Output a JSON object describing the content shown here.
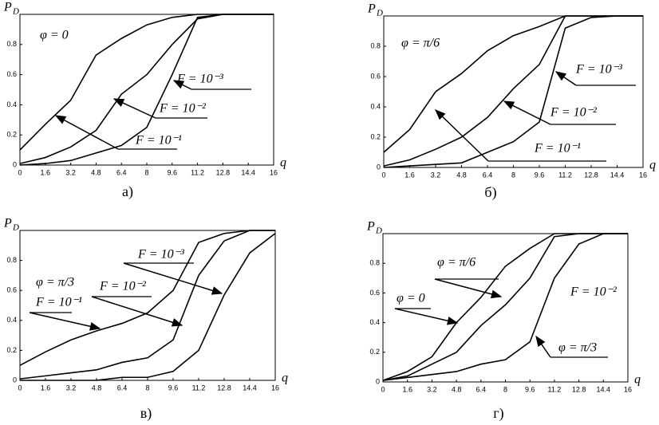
{
  "chart_data": [
    {
      "type": "line",
      "caption": "а)",
      "ylabel": "P",
      "ylabel_sub": "D",
      "xlabel": "q",
      "annotation": "φ = 0",
      "x": [
        0,
        1.6,
        3.2,
        4.8,
        6.4,
        8,
        9.6,
        11.2,
        12.8,
        14.4,
        16
      ],
      "xlim": [
        0,
        16
      ],
      "xticks": [
        0,
        1.6,
        3.2,
        4.8,
        6.4,
        8,
        9.6,
        11.2,
        12.8,
        14.4,
        16
      ],
      "ylim": [
        0,
        1
      ],
      "yticks": [
        0,
        0.2,
        0.4,
        0.6,
        0.8
      ],
      "series": [
        {
          "name": "F = 10⁻¹",
          "color": "#000000",
          "values": [
            0.1,
            0.27,
            0.43,
            0.73,
            0.84,
            0.93,
            0.98,
            1,
            1,
            1,
            1
          ]
        },
        {
          "name": "F = 10⁻²",
          "color": "#000000",
          "values": [
            0.01,
            0.05,
            0.12,
            0.23,
            0.47,
            0.6,
            0.8,
            0.97,
            1,
            1,
            1
          ]
        },
        {
          "name": "F = 10⁻³",
          "color": "#000000",
          "values": [
            0,
            0.01,
            0.03,
            0.08,
            0.13,
            0.25,
            0.6,
            0.98,
            1,
            1,
            1
          ]
        }
      ]
    },
    {
      "type": "line",
      "caption": "б)",
      "ylabel": "P",
      "ylabel_sub": "D",
      "xlabel": "q",
      "annotation": "φ = π/6",
      "x": [
        0,
        1.6,
        3.2,
        4.8,
        6.4,
        8,
        9.6,
        11.2,
        12.8,
        14.4,
        16
      ],
      "xlim": [
        0,
        16
      ],
      "xticks": [
        0,
        1.6,
        3.2,
        4.8,
        6.4,
        8,
        9.6,
        11.2,
        12.8,
        14.4,
        16
      ],
      "ylim": [
        0,
        1
      ],
      "yticks": [
        0,
        0.2,
        0.4,
        0.6,
        0.8
      ],
      "series": [
        {
          "name": "F = 10⁻¹",
          "color": "#000000",
          "values": [
            0.1,
            0.25,
            0.5,
            0.62,
            0.77,
            0.87,
            0.93,
            1,
            1,
            1,
            1
          ]
        },
        {
          "name": "F = 10⁻²",
          "color": "#000000",
          "values": [
            0.01,
            0.05,
            0.12,
            0.2,
            0.33,
            0.52,
            0.68,
            1,
            1,
            1,
            1
          ]
        },
        {
          "name": "F = 10⁻³",
          "color": "#000000",
          "values": [
            0,
            0.01,
            0.02,
            0.03,
            0.1,
            0.17,
            0.3,
            0.92,
            0.99,
            1,
            1
          ]
        }
      ]
    },
    {
      "type": "line",
      "caption": "в)",
      "ylabel": "P",
      "ylabel_sub": "D",
      "xlabel": "q",
      "annotation": "φ = π/3",
      "x": [
        0,
        1.6,
        3.2,
        4.8,
        6.4,
        8,
        9.6,
        11.2,
        12.8,
        14.4,
        16
      ],
      "xlim": [
        0,
        16
      ],
      "xticks": [
        0,
        1.6,
        3.2,
        4.8,
        6.4,
        8,
        9.6,
        11.2,
        12.8,
        14.4,
        16
      ],
      "ylim": [
        0,
        1
      ],
      "yticks": [
        0,
        0.2,
        0.4,
        0.6,
        0.8
      ],
      "series": [
        {
          "name": "F = 10⁻¹",
          "color": "#000000",
          "values": [
            0.1,
            0.19,
            0.27,
            0.33,
            0.38,
            0.45,
            0.6,
            0.92,
            0.98,
            1,
            1
          ]
        },
        {
          "name": "F = 10⁻²",
          "color": "#000000",
          "values": [
            0.01,
            0.03,
            0.05,
            0.07,
            0.12,
            0.15,
            0.27,
            0.7,
            0.93,
            1,
            1
          ]
        },
        {
          "name": "F = 10⁻³",
          "color": "#000000",
          "values": [
            0,
            0,
            0,
            0,
            0.02,
            0.02,
            0.06,
            0.2,
            0.57,
            0.85,
            0.98
          ]
        }
      ]
    },
    {
      "type": "line",
      "caption": "г)",
      "ylabel": "P",
      "ylabel_sub": "D",
      "xlabel": "q",
      "annotation": "F = 10⁻²",
      "x": [
        0,
        1.6,
        3.2,
        4.8,
        6.4,
        8,
        9.6,
        11.2,
        12.8,
        14.4,
        16
      ],
      "xlim": [
        0,
        16
      ],
      "xticks": [
        0,
        1.6,
        3.2,
        4.8,
        6.4,
        8,
        9.6,
        11.2,
        12.8,
        14.4,
        16
      ],
      "ylim": [
        0,
        1
      ],
      "yticks": [
        0,
        0.2,
        0.4,
        0.6,
        0.8
      ],
      "series": [
        {
          "name": "φ = 0",
          "color": "#000000",
          "values": [
            0.01,
            0.07,
            0.17,
            0.4,
            0.57,
            0.78,
            0.9,
            1,
            1,
            1,
            1
          ]
        },
        {
          "name": "φ = π/6",
          "color": "#000000",
          "values": [
            0.01,
            0.04,
            0.12,
            0.2,
            0.38,
            0.52,
            0.7,
            0.98,
            1,
            1,
            1
          ]
        },
        {
          "name": "φ = π/3",
          "color": "#000000",
          "values": [
            0.01,
            0.03,
            0.05,
            0.07,
            0.12,
            0.15,
            0.27,
            0.7,
            0.93,
            1,
            1
          ]
        }
      ]
    }
  ]
}
